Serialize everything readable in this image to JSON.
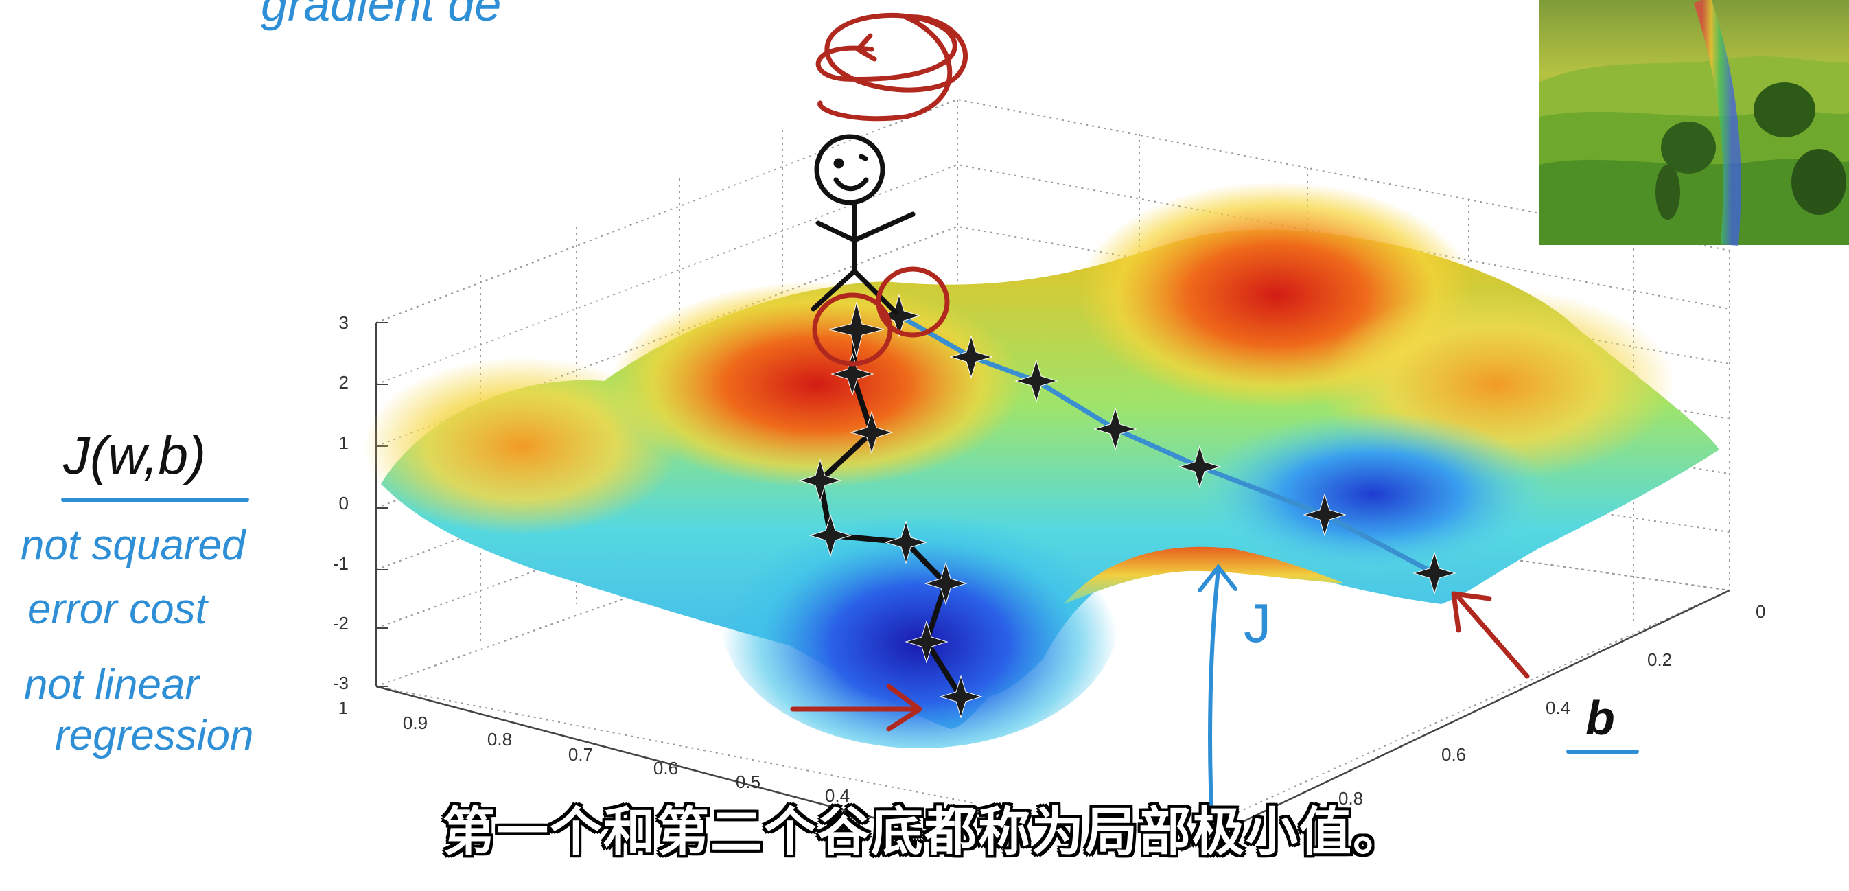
{
  "video_frame": {
    "heading_fragment": "gradient de",
    "cost_label": "J(w,b)",
    "notes": [
      "not squared",
      "error cost",
      "not linear",
      "regression"
    ],
    "j_label": "J",
    "b_axis_label": "b",
    "z_axis_ticks": [
      "3",
      "2",
      "1",
      "0",
      "-1",
      "-2",
      "-3"
    ],
    "w_axis_ticks": [
      "1",
      "0.9",
      "0.8",
      "0.7",
      "0.6",
      "0.5",
      "0.4"
    ],
    "b_axis_ticks": [
      "0",
      "0.2",
      "0.4",
      "0.6",
      "0.8"
    ],
    "subtitle": "第一个和第二个谷底都称为局部极小值。",
    "inset_image": "landscape-thumbnail"
  },
  "colors": {
    "annotation_blue": "#2e8fd6",
    "annotation_red": "#b0281e",
    "path_black": "#111111"
  }
}
